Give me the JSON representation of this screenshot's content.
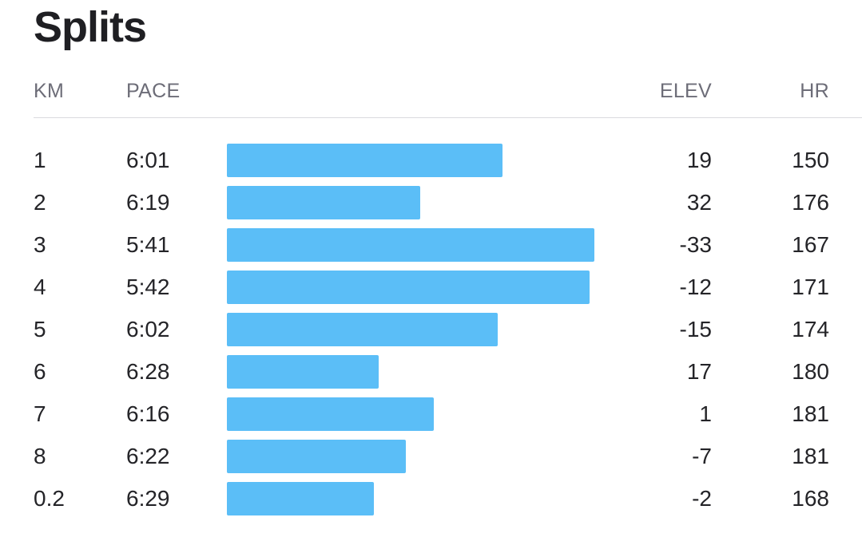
{
  "title": "Splits",
  "columns": {
    "km": "KM",
    "pace": "PACE",
    "elev": "ELEV",
    "hr": "HR"
  },
  "bar_color": "#5bbef7",
  "splits": [
    {
      "km": "1",
      "pace": "6:01",
      "pace_seconds": 361,
      "elev": "19",
      "hr": "150"
    },
    {
      "km": "2",
      "pace": "6:19",
      "pace_seconds": 379,
      "elev": "32",
      "hr": "176"
    },
    {
      "km": "3",
      "pace": "5:41",
      "pace_seconds": 341,
      "elev": "-33",
      "hr": "167"
    },
    {
      "km": "4",
      "pace": "5:42",
      "pace_seconds": 342,
      "elev": "-12",
      "hr": "171"
    },
    {
      "km": "5",
      "pace": "6:02",
      "pace_seconds": 362,
      "elev": "-15",
      "hr": "174"
    },
    {
      "km": "6",
      "pace": "6:28",
      "pace_seconds": 388,
      "elev": "17",
      "hr": "180"
    },
    {
      "km": "7",
      "pace": "6:16",
      "pace_seconds": 376,
      "elev": "1",
      "hr": "181"
    },
    {
      "km": "8",
      "pace": "6:22",
      "pace_seconds": 382,
      "elev": "-7",
      "hr": "181"
    },
    {
      "km": "0.2",
      "pace": "6:29",
      "pace_seconds": 389,
      "elev": "-2",
      "hr": "168"
    }
  ]
}
